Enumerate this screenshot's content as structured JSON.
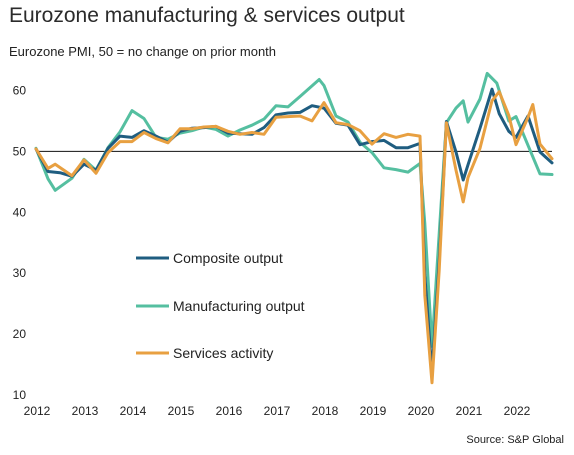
{
  "header": {
    "title": "Eurozone manufacturing & services output",
    "subtitle": "Eurozone PMI, 50 = no change on prior month",
    "source": "Source: S&P Global"
  },
  "chart_data": {
    "type": "line",
    "title": "Eurozone manufacturing & services output",
    "subtitle": "Eurozone PMI, 50 = no change on prior month",
    "xlabel": "",
    "ylabel": "",
    "xlim": [
      2012,
      2022.75
    ],
    "ylim": [
      10,
      65
    ],
    "yticks": [
      10,
      20,
      30,
      40,
      50,
      60
    ],
    "xticks": [
      "2012",
      "2013",
      "2014",
      "2015",
      "2016",
      "2017",
      "2018",
      "2019",
      "2020",
      "2021",
      "2022"
    ],
    "reference_line": 50,
    "grid": false,
    "legend_position": "lower-left",
    "series": [
      {
        "name": "Composite output",
        "color": "#1f5d80",
        "points": [
          [
            2012.0,
            50.4
          ],
          [
            2012.25,
            46.7
          ],
          [
            2012.5,
            46.5
          ],
          [
            2012.75,
            45.9
          ],
          [
            2013.0,
            47.9
          ],
          [
            2013.25,
            46.9
          ],
          [
            2013.5,
            50.5
          ],
          [
            2013.75,
            52.5
          ],
          [
            2014.0,
            52.3
          ],
          [
            2014.25,
            53.4
          ],
          [
            2014.5,
            52.5
          ],
          [
            2014.75,
            51.5
          ],
          [
            2015.0,
            53.3
          ],
          [
            2015.25,
            53.8
          ],
          [
            2015.5,
            53.9
          ],
          [
            2015.75,
            54.1
          ],
          [
            2016.0,
            53.0
          ],
          [
            2016.25,
            52.9
          ],
          [
            2016.5,
            52.8
          ],
          [
            2016.75,
            53.9
          ],
          [
            2017.0,
            56.0
          ],
          [
            2017.25,
            56.3
          ],
          [
            2017.5,
            56.4
          ],
          [
            2017.75,
            57.5
          ],
          [
            2018.0,
            57.1
          ],
          [
            2018.25,
            54.6
          ],
          [
            2018.5,
            54.3
          ],
          [
            2018.75,
            51.1
          ],
          [
            2019.0,
            51.6
          ],
          [
            2019.25,
            51.8
          ],
          [
            2019.5,
            50.6
          ],
          [
            2019.75,
            50.6
          ],
          [
            2020.0,
            51.3
          ],
          [
            2020.1,
            29.7
          ],
          [
            2020.25,
            13.6
          ],
          [
            2020.4,
            31.9
          ],
          [
            2020.55,
            54.9
          ],
          [
            2020.75,
            49.9
          ],
          [
            2020.9,
            45.3
          ],
          [
            2021.0,
            47.8
          ],
          [
            2021.25,
            53.8
          ],
          [
            2021.5,
            60.2
          ],
          [
            2021.65,
            56.2
          ],
          [
            2021.85,
            53.3
          ],
          [
            2022.0,
            52.3
          ],
          [
            2022.25,
            55.8
          ],
          [
            2022.5,
            49.9
          ],
          [
            2022.75,
            48.1
          ]
        ]
      },
      {
        "name": "Manufacturing output",
        "color": "#55bfa0",
        "points": [
          [
            2012.0,
            50.5
          ],
          [
            2012.25,
            45.5
          ],
          [
            2012.4,
            43.6
          ],
          [
            2012.75,
            45.6
          ],
          [
            2013.0,
            48.7
          ],
          [
            2013.25,
            46.9
          ],
          [
            2013.5,
            50.6
          ],
          [
            2013.75,
            53.2
          ],
          [
            2014.0,
            56.7
          ],
          [
            2014.25,
            55.4
          ],
          [
            2014.5,
            52.3
          ],
          [
            2014.75,
            52.0
          ],
          [
            2015.0,
            53.0
          ],
          [
            2015.25,
            53.4
          ],
          [
            2015.5,
            54.0
          ],
          [
            2015.75,
            53.6
          ],
          [
            2016.0,
            52.5
          ],
          [
            2016.25,
            53.5
          ],
          [
            2016.5,
            54.3
          ],
          [
            2016.75,
            55.3
          ],
          [
            2017.0,
            57.5
          ],
          [
            2017.25,
            57.3
          ],
          [
            2017.5,
            59.0
          ],
          [
            2017.9,
            61.8
          ],
          [
            2018.0,
            60.8
          ],
          [
            2018.25,
            55.8
          ],
          [
            2018.5,
            54.8
          ],
          [
            2018.75,
            51.5
          ],
          [
            2019.0,
            49.8
          ],
          [
            2019.25,
            47.3
          ],
          [
            2019.5,
            47.0
          ],
          [
            2019.75,
            46.6
          ],
          [
            2020.0,
            48.0
          ],
          [
            2020.1,
            38.2
          ],
          [
            2020.25,
            18.0
          ],
          [
            2020.4,
            36.5
          ],
          [
            2020.55,
            54.7
          ],
          [
            2020.75,
            57.1
          ],
          [
            2020.9,
            58.3
          ],
          [
            2021.0,
            54.8
          ],
          [
            2021.25,
            58.6
          ],
          [
            2021.4,
            62.8
          ],
          [
            2021.6,
            61.2
          ],
          [
            2021.85,
            55.0
          ],
          [
            2022.0,
            55.7
          ],
          [
            2022.25,
            51.0
          ],
          [
            2022.5,
            46.3
          ],
          [
            2022.75,
            46.2
          ]
        ]
      },
      {
        "name": "Services activity",
        "color": "#e8a041",
        "points": [
          [
            2012.0,
            50.4
          ],
          [
            2012.25,
            47.2
          ],
          [
            2012.4,
            47.9
          ],
          [
            2012.75,
            46.0
          ],
          [
            2013.0,
            48.6
          ],
          [
            2013.25,
            46.4
          ],
          [
            2013.5,
            49.8
          ],
          [
            2013.75,
            51.6
          ],
          [
            2014.0,
            51.6
          ],
          [
            2014.25,
            53.1
          ],
          [
            2014.5,
            52.1
          ],
          [
            2014.75,
            51.4
          ],
          [
            2015.0,
            53.7
          ],
          [
            2015.25,
            53.7
          ],
          [
            2015.5,
            54.0
          ],
          [
            2015.75,
            54.1
          ],
          [
            2016.0,
            53.3
          ],
          [
            2016.25,
            52.8
          ],
          [
            2016.5,
            53.1
          ],
          [
            2016.75,
            52.8
          ],
          [
            2017.0,
            55.6
          ],
          [
            2017.25,
            55.7
          ],
          [
            2017.5,
            55.8
          ],
          [
            2017.75,
            55.0
          ],
          [
            2018.0,
            58.0
          ],
          [
            2018.25,
            54.7
          ],
          [
            2018.5,
            54.4
          ],
          [
            2018.75,
            53.4
          ],
          [
            2019.0,
            51.2
          ],
          [
            2019.25,
            52.9
          ],
          [
            2019.5,
            52.3
          ],
          [
            2019.75,
            52.8
          ],
          [
            2020.0,
            52.5
          ],
          [
            2020.1,
            26.4
          ],
          [
            2020.25,
            12.0
          ],
          [
            2020.4,
            30.5
          ],
          [
            2020.55,
            54.7
          ],
          [
            2020.75,
            46.9
          ],
          [
            2020.9,
            41.7
          ],
          [
            2021.0,
            45.7
          ],
          [
            2021.25,
            50.5
          ],
          [
            2021.5,
            58.3
          ],
          [
            2021.65,
            59.8
          ],
          [
            2021.85,
            55.9
          ],
          [
            2022.0,
            51.1
          ],
          [
            2022.25,
            55.6
          ],
          [
            2022.35,
            57.7
          ],
          [
            2022.5,
            51.2
          ],
          [
            2022.75,
            48.8
          ]
        ]
      }
    ]
  }
}
